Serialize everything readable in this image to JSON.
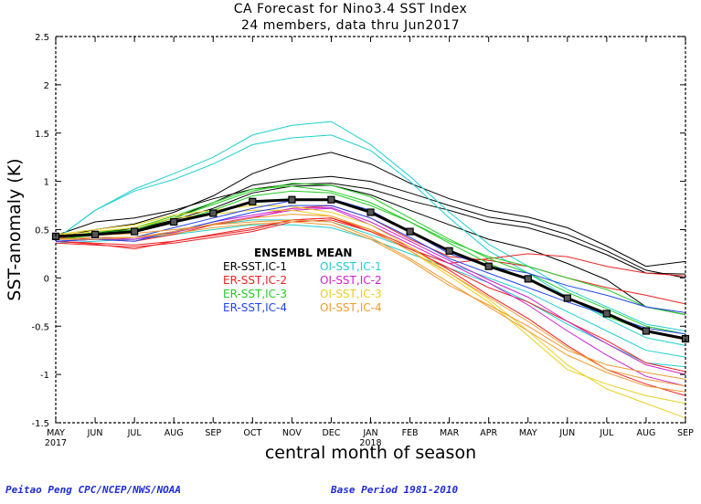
{
  "title_line1": "CA Forecast for Nino3.4 SST Index",
  "title_line2": "24 members, data thru Jun2017",
  "footer_left": "Peitao Peng CPC/NCEP/NWS/NOAA",
  "footer_right": "Base Period 1981-2010",
  "chart_data": {
    "type": "line",
    "title": "CA Forecast for Nino3.4 SST Index",
    "subtitle": "24 members, data thru Jun2017",
    "xlabel": "central month of season",
    "ylabel": "SST-anomaly (K)",
    "ylim": [
      -1.5,
      2.5
    ],
    "yticks": [
      "2.5",
      "2",
      "1.5",
      "1",
      "0.5",
      "0",
      "-0.5",
      "-1",
      "-1.5"
    ],
    "categories": [
      "MAY",
      "JUN",
      "JUL",
      "AUG",
      "SEP",
      "OCT",
      "NOV",
      "DEC",
      "JAN",
      "FEB",
      "MAR",
      "APR",
      "MAY",
      "JUN",
      "JUL",
      "AUG",
      "SEP"
    ],
    "year_labels": [
      {
        "index": 0,
        "text": "2017"
      },
      {
        "index": 8,
        "text": "2018"
      }
    ],
    "grid": false,
    "legend": {
      "placement": "center-left",
      "header": "ENSEMBL MEAN",
      "entries": [
        {
          "label": "ER-SST,IC-1",
          "color": "#000000"
        },
        {
          "label": "OI-SST,IC-1",
          "color": "#1ecfd0"
        },
        {
          "label": "ER-SST,IC-2",
          "color": "#ee2222"
        },
        {
          "label": "OI-SST,IC-2",
          "color": "#cc22cc"
        },
        {
          "label": "ER-SST,IC-3",
          "color": "#22cc22"
        },
        {
          "label": "OI-SST,IC-3",
          "color": "#e8d020"
        },
        {
          "label": "ER-SST,IC-4",
          "color": "#2244ee"
        },
        {
          "label": "OI-SST,IC-4",
          "color": "#f09a30"
        }
      ]
    },
    "mean": {
      "name": "ENSEMBL MEAN",
      "color": "#000000",
      "values": [
        0.43,
        0.45,
        0.48,
        0.58,
        0.67,
        0.79,
        0.81,
        0.81,
        0.68,
        0.48,
        0.28,
        0.12,
        -0.01,
        -0.21,
        -0.37,
        -0.55,
        -0.63
      ]
    },
    "members": [
      {
        "color": "#000000",
        "values": [
          0.4,
          0.45,
          0.52,
          0.62,
          0.78,
          0.96,
          1.02,
          1.05,
          1.0,
          0.88,
          0.75,
          0.63,
          0.57,
          0.45,
          0.28,
          0.08,
          0.0
        ]
      },
      {
        "color": "#000000",
        "values": [
          0.42,
          0.5,
          0.56,
          0.68,
          0.85,
          1.08,
          1.22,
          1.3,
          1.18,
          0.98,
          0.82,
          0.7,
          0.63,
          0.52,
          0.33,
          0.12,
          0.17
        ]
      },
      {
        "color": "#000000",
        "values": [
          0.44,
          0.58,
          0.62,
          0.7,
          0.82,
          0.92,
          0.97,
          0.98,
          0.92,
          0.8,
          0.7,
          0.58,
          0.52,
          0.4,
          0.24,
          0.05,
          0.04
        ]
      },
      {
        "color": "#000000",
        "values": [
          0.41,
          0.47,
          0.5,
          0.6,
          0.72,
          0.88,
          0.95,
          0.96,
          0.86,
          0.7,
          0.55,
          0.4,
          0.3,
          0.15,
          -0.02,
          -0.3,
          -0.38
        ]
      },
      {
        "color": "#1ecfd0",
        "values": [
          0.4,
          0.7,
          0.92,
          1.08,
          1.25,
          1.48,
          1.58,
          1.62,
          1.38,
          1.05,
          0.68,
          0.35,
          0.12,
          -0.12,
          -0.3,
          -0.48,
          -0.55
        ]
      },
      {
        "color": "#1ecfd0",
        "values": [
          0.4,
          0.7,
          0.9,
          1.02,
          1.18,
          1.38,
          1.45,
          1.48,
          1.32,
          1.0,
          0.62,
          0.28,
          0.05,
          -0.2,
          -0.42,
          -0.62,
          -0.7
        ]
      },
      {
        "color": "#1ecfd0",
        "values": [
          0.38,
          0.4,
          0.42,
          0.48,
          0.55,
          0.6,
          0.6,
          0.58,
          0.45,
          0.3,
          0.15,
          0.0,
          -0.15,
          -0.35,
          -0.55,
          -0.75,
          -0.82
        ]
      },
      {
        "color": "#1ecfd0",
        "values": [
          0.36,
          0.38,
          0.4,
          0.45,
          0.5,
          0.55,
          0.55,
          0.52,
          0.4,
          0.25,
          0.1,
          -0.05,
          -0.25,
          -0.48,
          -0.68,
          -0.88,
          -0.92
        ]
      },
      {
        "color": "#ee2222",
        "values": [
          0.38,
          0.35,
          0.3,
          0.38,
          0.45,
          0.52,
          0.6,
          0.62,
          0.48,
          0.3,
          0.15,
          0.2,
          0.25,
          0.22,
          0.12,
          0.05,
          0.02
        ]
      },
      {
        "color": "#ee2222",
        "values": [
          0.42,
          0.4,
          0.38,
          0.45,
          0.55,
          0.62,
          0.72,
          0.75,
          0.62,
          0.4,
          0.22,
          0.18,
          0.12,
          0.0,
          -0.1,
          -0.18,
          -0.27
        ]
      },
      {
        "color": "#ee2222",
        "values": [
          0.36,
          0.34,
          0.32,
          0.36,
          0.42,
          0.48,
          0.58,
          0.6,
          0.48,
          0.3,
          0.1,
          -0.1,
          -0.25,
          -0.45,
          -0.65,
          -0.88,
          -0.97
        ]
      },
      {
        "color": "#ee2222",
        "values": [
          0.38,
          0.36,
          0.34,
          0.38,
          0.44,
          0.5,
          0.6,
          0.62,
          0.5,
          0.32,
          0.08,
          -0.18,
          -0.42,
          -0.7,
          -0.95,
          -1.1,
          -1.22
        ]
      },
      {
        "color": "#cc22cc",
        "values": [
          0.4,
          0.4,
          0.4,
          0.48,
          0.58,
          0.65,
          0.72,
          0.73,
          0.58,
          0.38,
          0.18,
          -0.02,
          -0.2,
          -0.45,
          -0.68,
          -0.9,
          -1.0
        ]
      },
      {
        "color": "#cc22cc",
        "values": [
          0.4,
          0.42,
          0.4,
          0.47,
          0.56,
          0.63,
          0.7,
          0.72,
          0.55,
          0.35,
          0.15,
          -0.05,
          -0.28,
          -0.55,
          -0.8,
          -1.02,
          -1.12
        ]
      },
      {
        "color": "#22cc22",
        "values": [
          0.42,
          0.46,
          0.5,
          0.62,
          0.76,
          0.9,
          0.98,
          0.96,
          0.84,
          0.62,
          0.4,
          0.2,
          0.05,
          -0.15,
          -0.32,
          -0.5,
          -0.58
        ]
      },
      {
        "color": "#22cc22",
        "values": [
          0.42,
          0.47,
          0.52,
          0.64,
          0.78,
          0.92,
          0.95,
          0.9,
          0.78,
          0.58,
          0.38,
          0.22,
          0.12,
          0.0,
          -0.12,
          -0.3,
          -0.38
        ]
      },
      {
        "color": "#22cc22",
        "values": [
          0.4,
          0.44,
          0.48,
          0.58,
          0.7,
          0.85,
          0.9,
          0.88,
          0.75,
          0.58,
          0.36,
          0.15,
          -0.02,
          -0.2,
          -0.4,
          -0.55,
          -0.62
        ]
      },
      {
        "color": "#e8d020",
        "values": [
          0.45,
          0.5,
          0.55,
          0.65,
          0.7,
          0.75,
          0.74,
          0.68,
          0.55,
          0.32,
          0.05,
          -0.22,
          -0.55,
          -0.9,
          -1.15,
          -1.3,
          -1.45
        ]
      },
      {
        "color": "#e8d020",
        "values": [
          0.44,
          0.48,
          0.52,
          0.62,
          0.66,
          0.7,
          0.7,
          0.64,
          0.5,
          0.28,
          0.02,
          -0.25,
          -0.6,
          -0.95,
          -1.1,
          -1.22,
          -1.3
        ]
      },
      {
        "color": "#2244ee",
        "values": [
          0.38,
          0.4,
          0.42,
          0.52,
          0.62,
          0.72,
          0.8,
          0.82,
          0.7,
          0.48,
          0.25,
          0.12,
          0.05,
          -0.08,
          -0.18,
          -0.3,
          -0.36
        ]
      },
      {
        "color": "#2244ee",
        "values": [
          0.38,
          0.4,
          0.38,
          0.48,
          0.58,
          0.68,
          0.75,
          0.75,
          0.62,
          0.42,
          0.2,
          0.05,
          -0.1,
          -0.25,
          -0.38,
          -0.52,
          -0.58
        ]
      },
      {
        "color": "#f09a30",
        "values": [
          0.4,
          0.4,
          0.42,
          0.48,
          0.56,
          0.62,
          0.66,
          0.64,
          0.5,
          0.28,
          0.05,
          -0.2,
          -0.45,
          -0.72,
          -0.95,
          -1.05,
          -1.12
        ]
      },
      {
        "color": "#f09a30",
        "values": [
          0.42,
          0.44,
          0.46,
          0.5,
          0.55,
          0.58,
          0.6,
          0.58,
          0.42,
          0.2,
          -0.05,
          -0.3,
          -0.55,
          -0.8,
          -0.98,
          -1.12,
          -1.18
        ]
      },
      {
        "color": "#f09a30",
        "values": [
          0.4,
          0.42,
          0.42,
          0.46,
          0.52,
          0.56,
          0.58,
          0.55,
          0.4,
          0.18,
          -0.08,
          -0.28,
          -0.5,
          -0.75,
          -0.9,
          -0.98,
          -1.05
        ]
      }
    ]
  }
}
